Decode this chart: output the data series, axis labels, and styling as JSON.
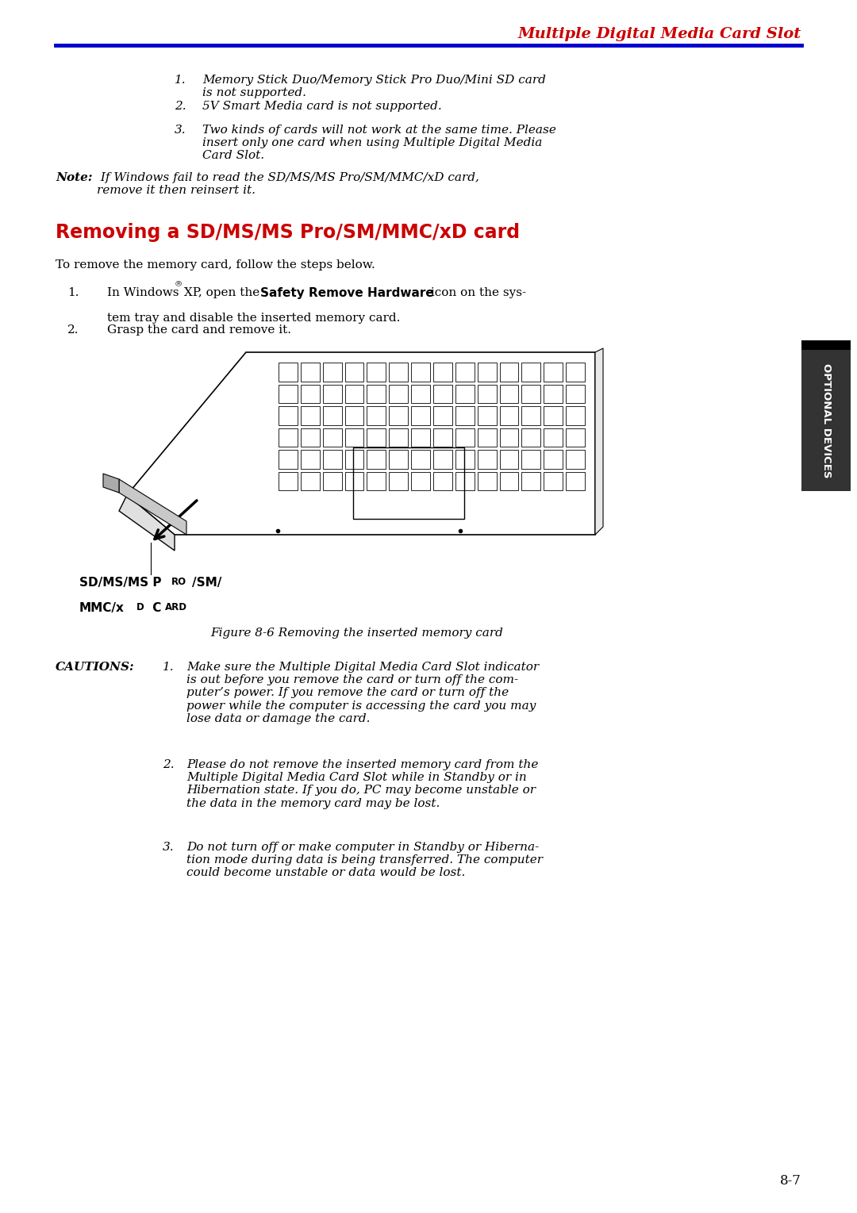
{
  "bg_color": "#ffffff",
  "header_text": "Multiple Digital Media Card Slot",
  "header_color": "#cc0000",
  "header_line_color": "#0000cc",
  "section_title": "Removing a SD/MS/MS Pro/SM/MMC/xD card",
  "section_title_color": "#cc0000",
  "intro_text": "To remove the memory card, follow the steps below.",
  "numbered_items_top": [
    "Memory Stick Duo/Memory Stick Pro Duo/Mini SD card\nis not supported.",
    "5V Smart Media card is not supported.",
    "Two kinds of cards will not work at the same time. Please\ninsert only one card when using Multiple Digital Media\nCard Slot."
  ],
  "note_bold": "Note:",
  "note_text": " If Windows fail to read the SD/MS/MS Pro/SM/MMC/xD card,\nremove it then reinsert it.",
  "steps": [
    [
      "In Windows",
      " XP, open the ",
      "Safety Remove Hardware",
      " icon on the sys-\ntem tray and disable the inserted memory card."
    ],
    [
      "Grasp the card and remove it."
    ]
  ],
  "figure_caption": "Figure 8-6 Removing the inserted memory card",
  "card_label_line1": "SD/MS/MS P",
  "card_label_line1b": "RO",
  "card_label_line1c": "/SM/",
  "card_label_line2": "MMC/x",
  "card_label_line2b": "D",
  "card_label_line2c": " C",
  "card_label_line2d": "ARD",
  "cautions_label": "CAUTIONS:",
  "cautions": [
    "Make sure the Multiple Digital Media Card Slot indicator\nis out before you remove the card or turn off the com-\nputer’s power. If you remove the card or turn off the\npower while the computer is accessing the card you may\nlose data or damage the card.",
    "Please do not remove the inserted memory card from the\nMultiple Digital Media Card Slot while in Standby or in\nHibernation state. If you do, PC may become unstable or\nthe data in the memory card may be lost.",
    "Do not turn off or make computer in Standby or Hiberna-\ntion mode during data is being transferred. The computer\ncould become unstable or data would be lost."
  ],
  "page_number": "8-7",
  "sidebar_text": "OPTIONAL DEVICES",
  "sidebar_bg": "#333333",
  "sidebar_text_color": "#ffffff"
}
